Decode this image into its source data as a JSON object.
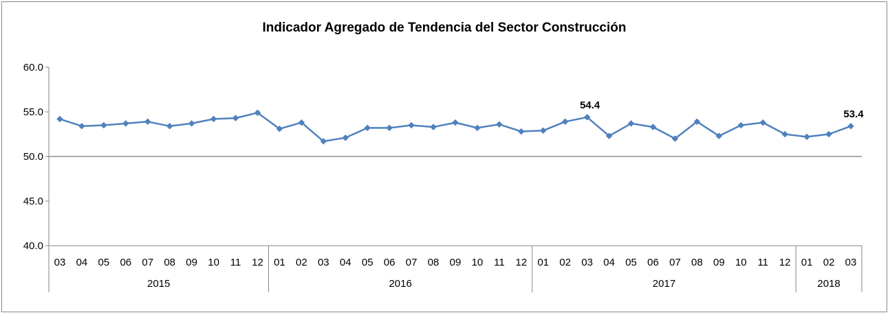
{
  "chart_data": {
    "type": "line",
    "title": "Indicador Agregado de Tendencia del Sector Construcción",
    "xlabel": "",
    "ylabel": "",
    "ylim": [
      40.0,
      60.0
    ],
    "yticks": [
      "60.0",
      "55.0",
      "50.0",
      "45.0",
      "40.0"
    ],
    "reference_line": 50.0,
    "grid": false,
    "legend": "none",
    "line_color": "#4F81BD",
    "x": [
      "03",
      "04",
      "05",
      "06",
      "07",
      "08",
      "09",
      "10",
      "11",
      "12",
      "01",
      "02",
      "03",
      "04",
      "05",
      "06",
      "07",
      "08",
      "09",
      "10",
      "11",
      "12",
      "01",
      "02",
      "03",
      "04",
      "05",
      "06",
      "07",
      "08",
      "09",
      "10",
      "11",
      "12",
      "01",
      "02",
      "03"
    ],
    "year_groups": [
      {
        "label": "2015",
        "count": 10
      },
      {
        "label": "2016",
        "count": 12
      },
      {
        "label": "2017",
        "count": 12
      },
      {
        "label": "2018",
        "count": 3
      }
    ],
    "series": [
      {
        "values": [
          54.2,
          53.4,
          53.5,
          53.7,
          53.9,
          53.4,
          53.7,
          54.2,
          54.3,
          54.9,
          53.1,
          53.8,
          51.7,
          52.1,
          53.2,
          53.2,
          53.5,
          53.3,
          53.8,
          53.2,
          53.6,
          52.8,
          52.9,
          53.9,
          54.4,
          52.3,
          53.7,
          53.3,
          52.0,
          53.9,
          52.3,
          53.5,
          53.8,
          52.5,
          52.2,
          52.5,
          53.4
        ]
      }
    ],
    "data_labels": [
      {
        "index": 24,
        "text": "54.4"
      },
      {
        "index": 36,
        "text": "53.4"
      }
    ]
  }
}
